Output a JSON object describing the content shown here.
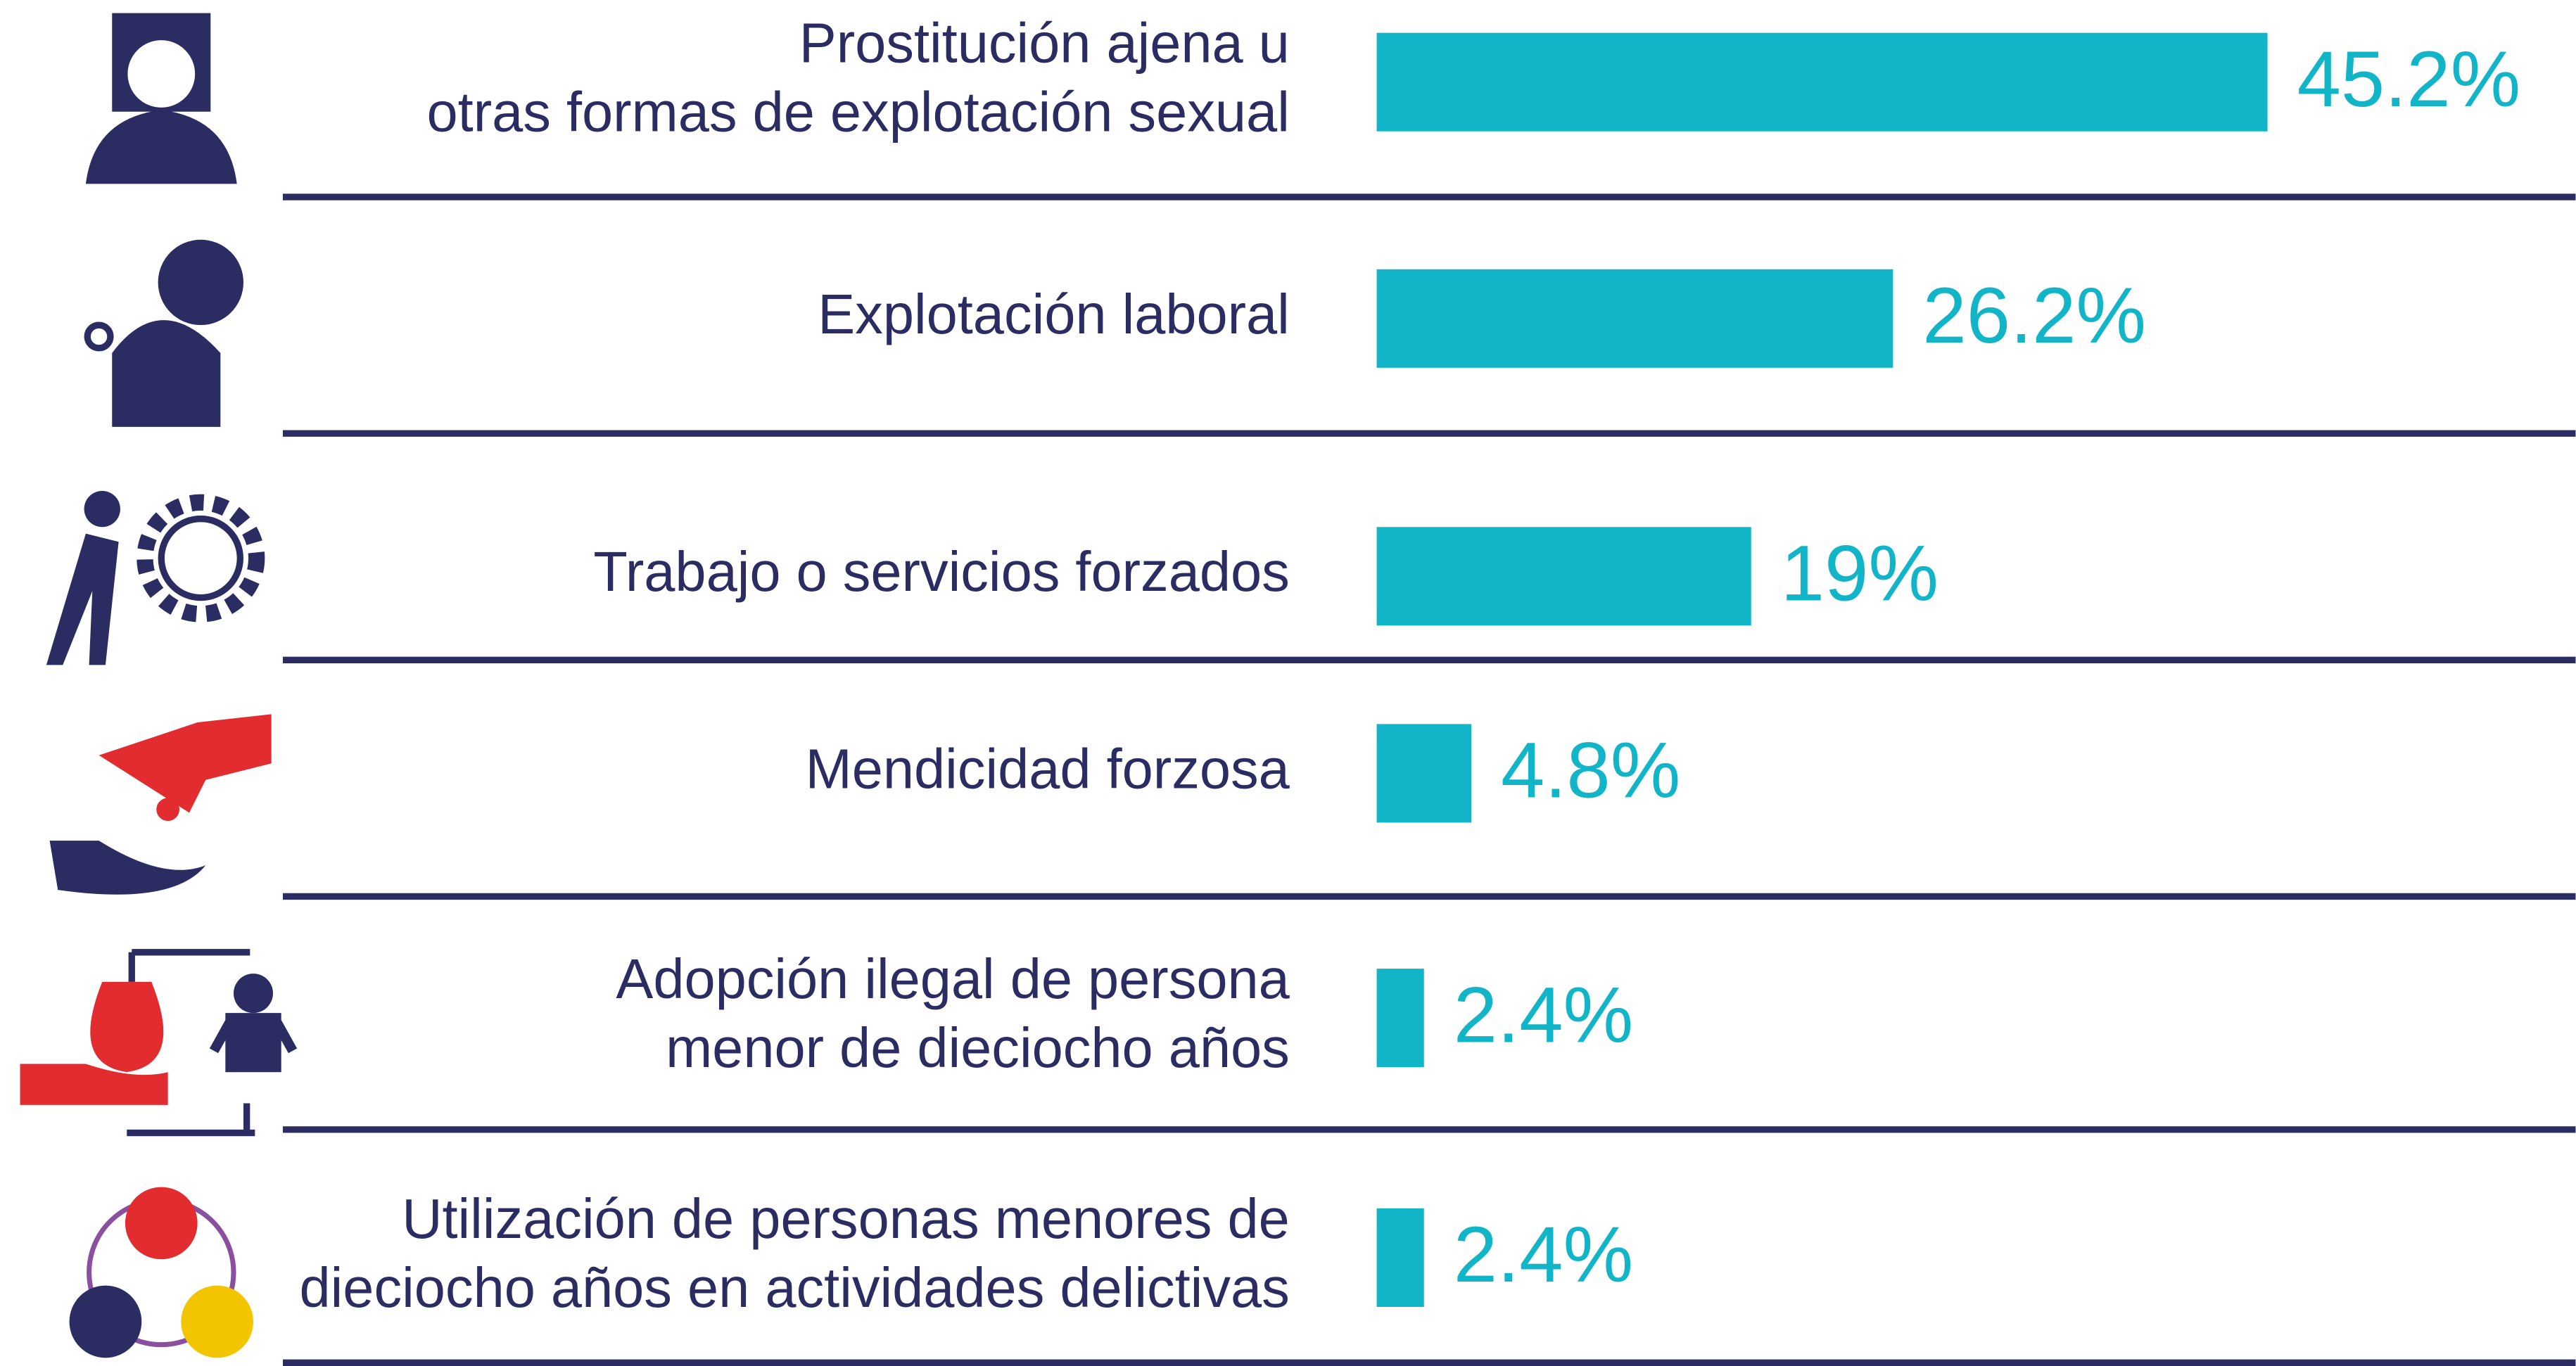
{
  "chart_data": {
    "type": "bar",
    "orientation": "horizontal",
    "categories": [
      [
        "Prostitución ajena u",
        "otras formas de explotación sexual"
      ],
      [
        "Explotación laboral"
      ],
      [
        "Trabajo o servicios forzados"
      ],
      [
        "Mendicidad forzosa"
      ],
      [
        "Adopción ilegal de persona",
        "menor de dieciocho años"
      ],
      [
        "Utilización de personas menores de",
        "dieciocho años en actividades delictivas"
      ]
    ],
    "values": [
      45.2,
      26.2,
      19,
      4.8,
      2.4,
      2.4
    ],
    "value_labels": [
      "45.2%",
      "26.2%",
      "19%",
      "4.8%",
      "2.4%",
      "2.4%"
    ],
    "color": "#12b5c8"
  }
}
